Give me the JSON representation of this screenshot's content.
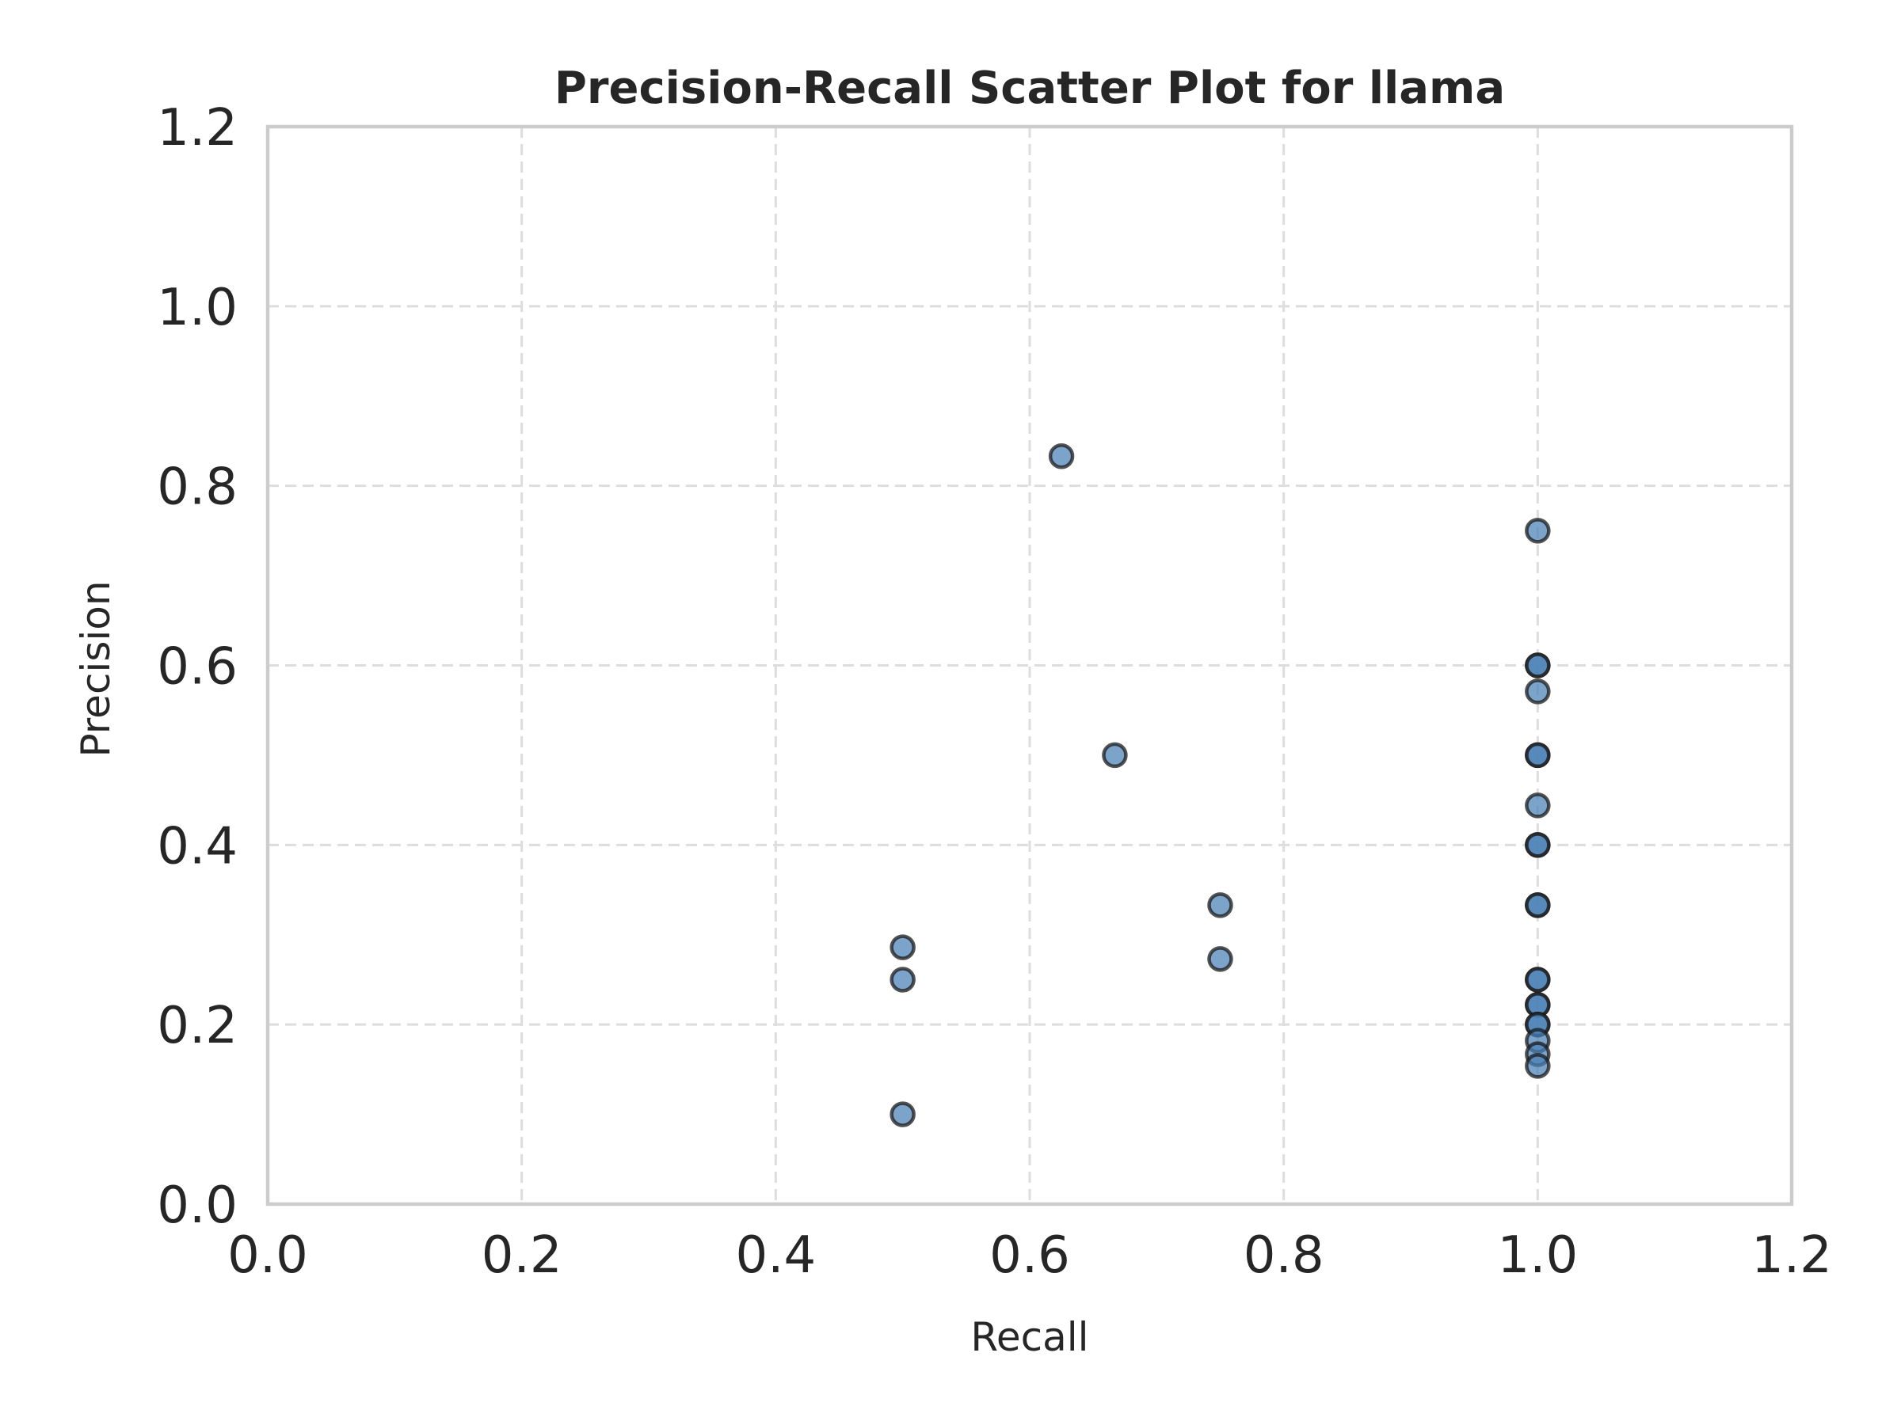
{
  "chart_data": {
    "type": "scatter",
    "title": "Precision-Recall Scatter Plot for llama",
    "xlabel": "Recall",
    "ylabel": "Precision",
    "xlim": [
      0.0,
      1.2
    ],
    "ylim": [
      0.0,
      1.2
    ],
    "xticks": [
      "0.0",
      "0.2",
      "0.4",
      "0.6",
      "0.8",
      "1.0",
      "1.2"
    ],
    "yticks": [
      "0.0",
      "0.2",
      "0.4",
      "0.6",
      "0.8",
      "1.0",
      "1.2"
    ],
    "grid": true,
    "colors": {
      "marker_fill": "#4a7fb5",
      "marker_edge": "#1a1a1a",
      "frame": "#cccccc",
      "grid": "#dddddd"
    },
    "points": [
      {
        "x": 0.625,
        "y": 0.833
      },
      {
        "x": 0.667,
        "y": 0.5
      },
      {
        "x": 0.75,
        "y": 0.333
      },
      {
        "x": 0.75,
        "y": 0.273
      },
      {
        "x": 0.5,
        "y": 0.286
      },
      {
        "x": 0.5,
        "y": 0.25
      },
      {
        "x": 0.5,
        "y": 0.1
      },
      {
        "x": 1.0,
        "y": 0.75
      },
      {
        "x": 1.0,
        "y": 0.6
      },
      {
        "x": 1.0,
        "y": 0.6
      },
      {
        "x": 1.0,
        "y": 0.571
      },
      {
        "x": 1.0,
        "y": 0.5
      },
      {
        "x": 1.0,
        "y": 0.5
      },
      {
        "x": 1.0,
        "y": 0.444
      },
      {
        "x": 1.0,
        "y": 0.4
      },
      {
        "x": 1.0,
        "y": 0.4
      },
      {
        "x": 1.0,
        "y": 0.333
      },
      {
        "x": 1.0,
        "y": 0.333
      },
      {
        "x": 1.0,
        "y": 0.25
      },
      {
        "x": 1.0,
        "y": 0.25
      },
      {
        "x": 1.0,
        "y": 0.222
      },
      {
        "x": 1.0,
        "y": 0.222
      },
      {
        "x": 1.0,
        "y": 0.2
      },
      {
        "x": 1.0,
        "y": 0.2
      },
      {
        "x": 1.0,
        "y": 0.182
      },
      {
        "x": 1.0,
        "y": 0.167
      },
      {
        "x": 1.0,
        "y": 0.154
      }
    ]
  }
}
